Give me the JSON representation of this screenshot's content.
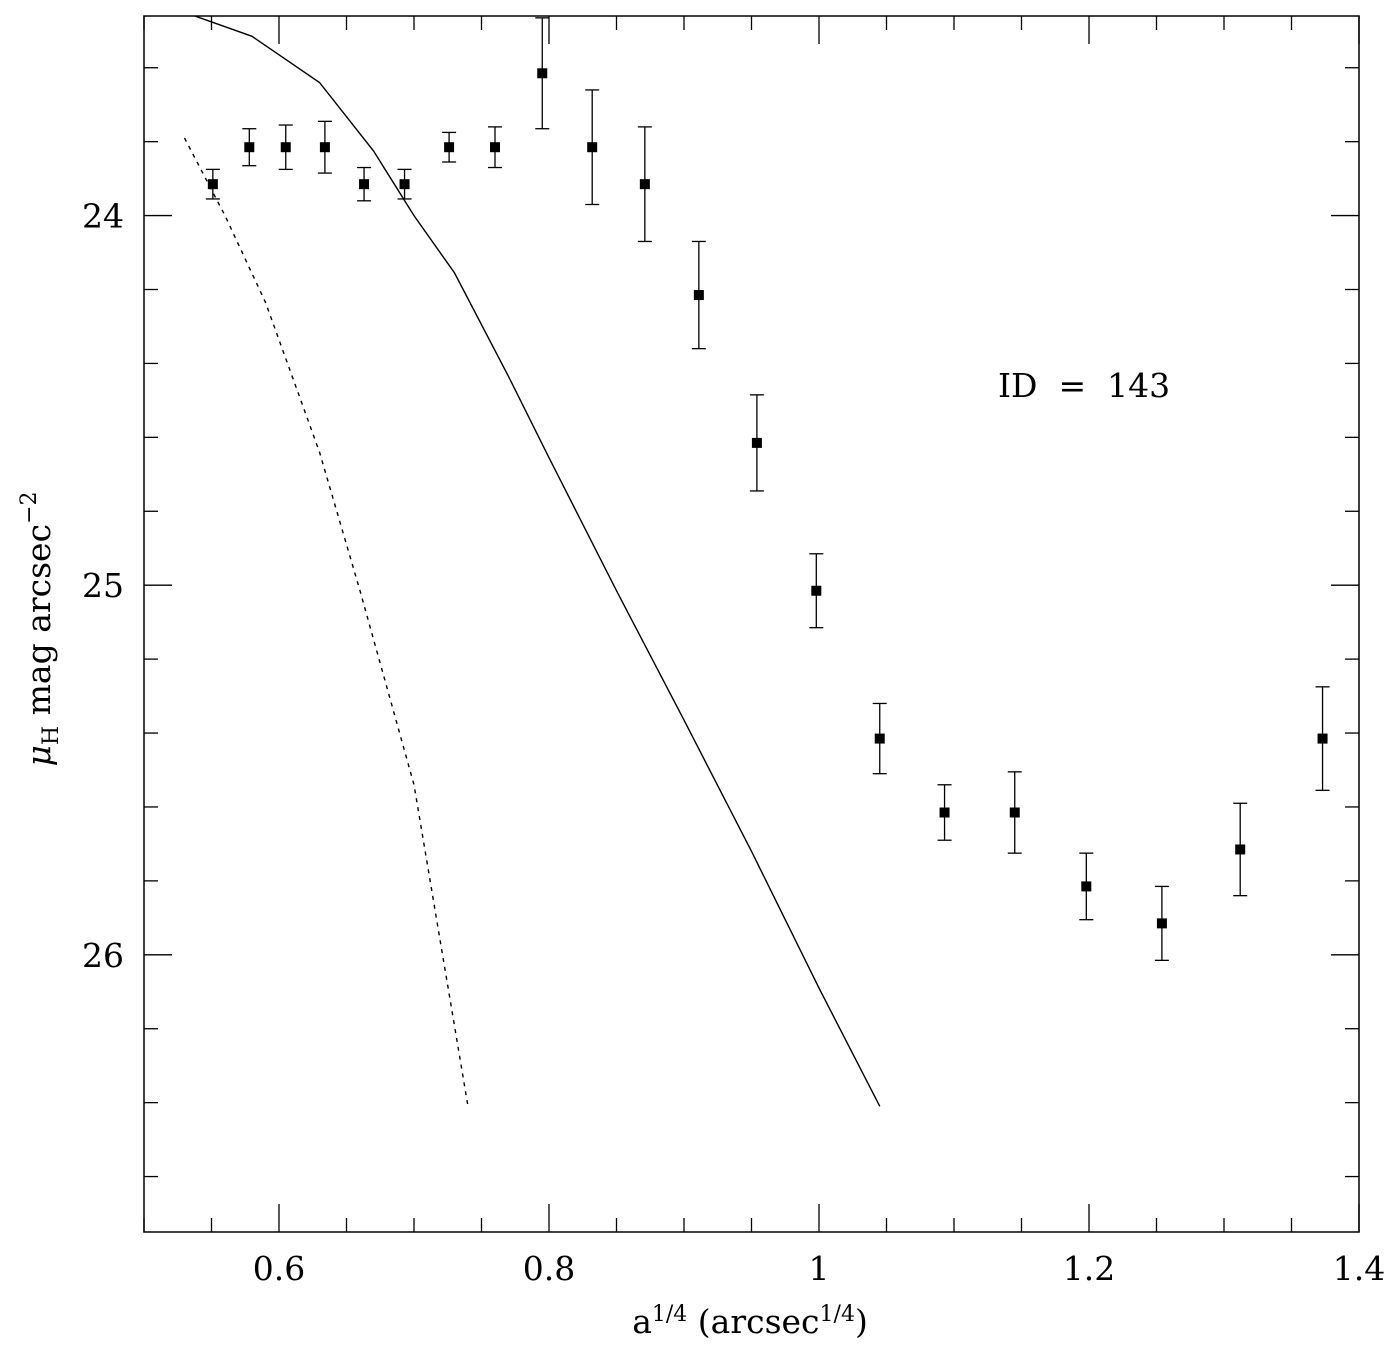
{
  "chart_data": {
    "type": "scatter",
    "title": "",
    "annotation": "ID  =  143",
    "xlabel": {
      "base": "a",
      "sup": "1/4",
      "unit_prefix": " (arcsec",
      "unit_sup": "1/4",
      "unit_suffix": ")"
    },
    "ylabel": {
      "symbol": "μ",
      "sub": "H",
      "text": " mag arcsec",
      "sup": "−2"
    },
    "xlim": [
      0.5,
      1.4
    ],
    "ylim": [
      23.46,
      26.75
    ],
    "y_inverted": true,
    "x_major_ticks": [
      0.6,
      0.8,
      1.0,
      1.2,
      1.4
    ],
    "x_major_tick_labels": [
      "0.6",
      "0.8",
      "1",
      "1.2",
      "1.4"
    ],
    "x_minor_step": 0.05,
    "y_major_ticks": [
      24,
      25,
      26
    ],
    "y_major_tick_labels": [
      "24",
      "25",
      "26"
    ],
    "y_minor_step": 0.2,
    "points": [
      {
        "x": 0.551,
        "y": 23.915,
        "err": 0.04
      },
      {
        "x": 0.578,
        "y": 23.815,
        "err": 0.05
      },
      {
        "x": 0.605,
        "y": 23.815,
        "err": 0.06
      },
      {
        "x": 0.634,
        "y": 23.815,
        "err": 0.07
      },
      {
        "x": 0.663,
        "y": 23.915,
        "err": 0.045
      },
      {
        "x": 0.693,
        "y": 23.915,
        "err": 0.04
      },
      {
        "x": 0.726,
        "y": 23.815,
        "err": 0.04
      },
      {
        "x": 0.76,
        "y": 23.815,
        "err": 0.055
      },
      {
        "x": 0.795,
        "y": 23.615,
        "err": 0.15
      },
      {
        "x": 0.832,
        "y": 23.815,
        "err": 0.155
      },
      {
        "x": 0.871,
        "y": 23.915,
        "err": 0.155
      },
      {
        "x": 0.911,
        "y": 24.215,
        "err": 0.145
      },
      {
        "x": 0.954,
        "y": 24.615,
        "err": 0.13
      },
      {
        "x": 0.998,
        "y": 25.015,
        "err": 0.1
      },
      {
        "x": 1.045,
        "y": 25.415,
        "err": 0.095
      },
      {
        "x": 1.093,
        "y": 25.615,
        "err": 0.075
      },
      {
        "x": 1.145,
        "y": 25.615,
        "err": 0.11
      },
      {
        "x": 1.198,
        "y": 25.815,
        "err": 0.09
      },
      {
        "x": 1.254,
        "y": 25.915,
        "err": 0.1
      },
      {
        "x": 1.312,
        "y": 25.715,
        "err": 0.125
      },
      {
        "x": 1.373,
        "y": 25.415,
        "err": 0.14
      }
    ],
    "series": [
      {
        "name": "model-solid",
        "style": "solid",
        "x": [
          0.5,
          0.53,
          0.58,
          0.63,
          0.67,
          0.7,
          0.73,
          0.77,
          0.8,
          0.85,
          0.9,
          0.95,
          1.0,
          1.045
        ],
        "y": [
          23.46,
          23.45,
          23.515,
          23.64,
          23.825,
          24.0,
          24.155,
          24.435,
          24.655,
          25.015,
          25.365,
          25.72,
          26.09,
          26.41
        ]
      },
      {
        "name": "model-dashed",
        "style": "dashed",
        "x": [
          0.53,
          0.56,
          0.59,
          0.63,
          0.66,
          0.7,
          0.72,
          0.74
        ],
        "y": [
          23.79,
          24.0,
          24.235,
          24.64,
          25.015,
          25.54,
          25.975,
          26.41
        ]
      }
    ]
  }
}
